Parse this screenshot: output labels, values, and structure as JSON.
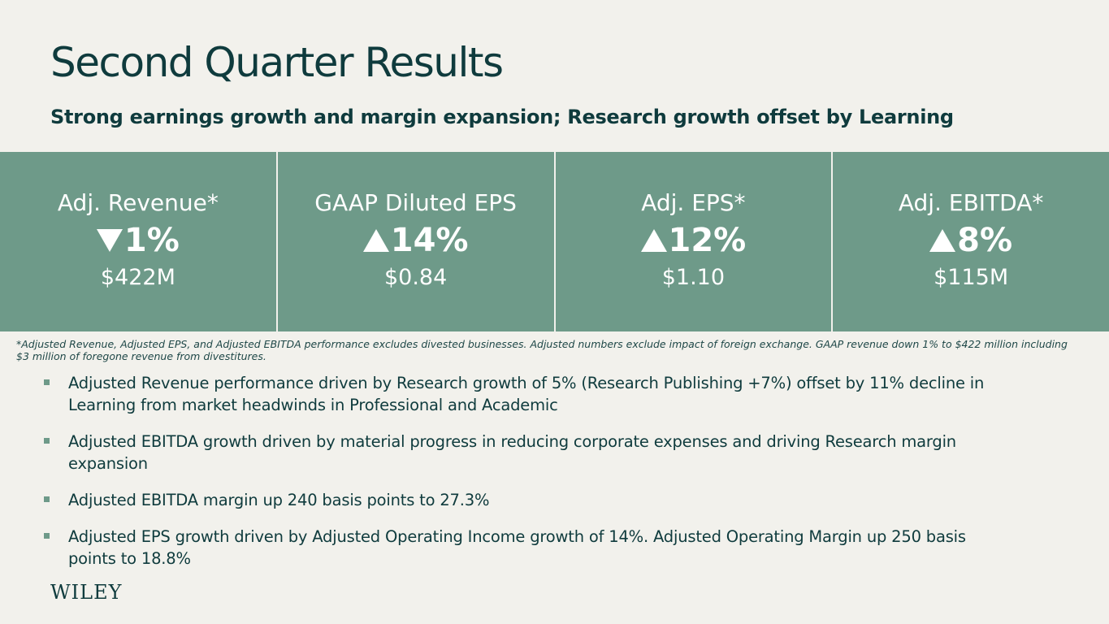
{
  "header": {
    "title": "Second Quarter Results",
    "subtitle": "Strong earnings growth and margin expansion; Research growth offset by Learning"
  },
  "metrics": [
    {
      "label": "Adj. Revenue*",
      "direction": "down",
      "change": "1%",
      "value": "$422M",
      "icon": "down-triangle-icon"
    },
    {
      "label": "GAAP Diluted EPS",
      "direction": "up",
      "change": "14%",
      "value": "$0.84",
      "icon": "up-triangle-icon"
    },
    {
      "label": "Adj. EPS*",
      "direction": "up",
      "change": "12%",
      "value": "$1.10",
      "icon": "up-triangle-icon"
    },
    {
      "label": "Adj. EBITDA*",
      "direction": "up",
      "change": "8%",
      "value": "$115M",
      "icon": "up-triangle-icon"
    }
  ],
  "footnote": "*Adjusted Revenue, Adjusted EPS, and Adjusted EBITDA performance excludes divested businesses. Adjusted numbers exclude impact of foreign exchange. GAAP revenue down 1% to $422 million including $3 million of foregone revenue from divestitures.",
  "bullets": [
    "Adjusted Revenue performance driven by Research growth of 5% (Research Publishing +7%) offset by 11% decline in Learning from market headwinds in Professional and Academic",
    "Adjusted EBITDA growth driven by material progress in reducing corporate expenses and driving Research margin expansion",
    "Adjusted EBITDA margin up 240 basis points to 27.3%",
    "Adjusted EPS growth driven by Adjusted Operating Income growth of 14%.  Adjusted Operating Margin up 250 basis points to 18.8%"
  ],
  "logo": "WILEY",
  "colors": {
    "background": "#f2f1ec",
    "band": "#6e9a89",
    "text_dark": "#0f3b3d",
    "bullet_marker": "#6e9a89"
  }
}
